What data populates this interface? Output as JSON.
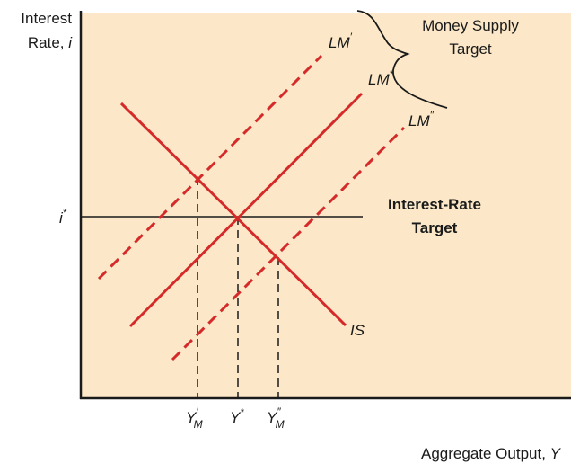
{
  "y_axis_label": {
    "line1": "Interest",
    "line2_prefix": "Rate, ",
    "line2_symbol": "i"
  },
  "x_axis_label": {
    "prefix": "Aggregate Output, ",
    "symbol": "Y"
  },
  "money_supply_label": {
    "line1": "Money Supply",
    "line2": "Target"
  },
  "interest_rate_label": {
    "line1": "Interest-Rate",
    "line2": "Target"
  },
  "i_star": {
    "symbol": "i",
    "sup": "*"
  },
  "curves": {
    "lm_prime": {
      "base": "LM",
      "sup": "′"
    },
    "lm_star": {
      "base": "LM",
      "sup": "*"
    },
    "lm_double": {
      "base": "LM",
      "sup": "″"
    },
    "is": {
      "base": "IS"
    }
  },
  "x_ticks": {
    "ym_prime": {
      "base": "Y",
      "sup": "′",
      "sub": "M"
    },
    "y_star": {
      "base": "Y",
      "sup": "*"
    },
    "ym_double": {
      "base": "Y",
      "sup": "″",
      "sub": "M"
    }
  },
  "colors": {
    "panel": "#fce8c8",
    "curve": "#d42a2a",
    "axis": "#1a1a1a",
    "dashed_guide": "#1a1a1a"
  }
}
